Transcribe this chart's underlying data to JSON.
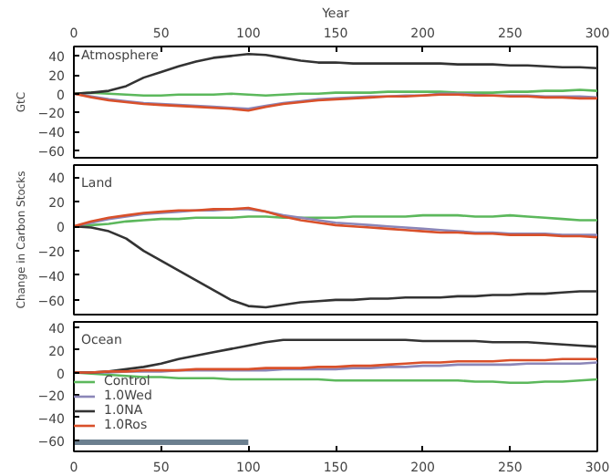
{
  "chart_data": [
    {
      "type": "line",
      "title": "Atmosphere",
      "ylabel": "GtC",
      "x2label": "Year",
      "xlim": [
        0,
        300
      ],
      "x2lim": [
        0,
        300
      ],
      "x2ticks": [
        0,
        50,
        100,
        150,
        200,
        250,
        300
      ],
      "ylim": [
        -68,
        50
      ],
      "yticks": [
        -60,
        -40,
        -20,
        0,
        20,
        40
      ],
      "tick_labels": "y",
      "grid": false,
      "legend": false,
      "x": [
        0,
        10,
        20,
        30,
        40,
        50,
        60,
        70,
        80,
        90,
        100,
        110,
        120,
        130,
        140,
        150,
        160,
        170,
        180,
        190,
        200,
        210,
        220,
        230,
        240,
        250,
        260,
        270,
        280,
        290,
        300
      ],
      "series": [
        {
          "color": "#5cb85c",
          "values": [
            0,
            1,
            0,
            -1,
            -2,
            -2,
            -1,
            -1,
            -1,
            0,
            -1,
            -2,
            -1,
            0,
            0,
            1,
            1,
            1,
            2,
            2,
            2,
            2,
            1,
            1,
            1,
            2,
            2,
            3,
            3,
            4,
            3
          ]
        },
        {
          "color": "#8b86b8",
          "values": [
            0,
            -3,
            -6,
            -8,
            -10,
            -11,
            -12,
            -13,
            -14,
            -15,
            -16,
            -13,
            -10,
            -8,
            -6,
            -5,
            -4,
            -3,
            -3,
            -2,
            -2,
            0,
            0,
            -1,
            -2,
            -2,
            -2,
            -3,
            -3,
            -3,
            -4
          ]
        },
        {
          "color": "#333333",
          "values": [
            0,
            1,
            3,
            8,
            17,
            23,
            29,
            34,
            38,
            40,
            42,
            41,
            38,
            35,
            33,
            33,
            32,
            32,
            32,
            32,
            32,
            32,
            31,
            31,
            31,
            30,
            30,
            29,
            28,
            28,
            27
          ]
        },
        {
          "color": "#d9502a",
          "values": [
            0,
            -4,
            -7,
            -9,
            -11,
            -12,
            -13,
            -14,
            -15,
            -16,
            -18,
            -14,
            -11,
            -9,
            -7,
            -6,
            -5,
            -4,
            -3,
            -3,
            -2,
            -1,
            -1,
            -2,
            -2,
            -3,
            -3,
            -4,
            -4,
            -5,
            -5
          ]
        }
      ]
    },
    {
      "type": "line",
      "title": "Land",
      "ylabel": "Change in Carbon Stocks",
      "xlim": [
        0,
        300
      ],
      "ylim": [
        -72,
        50
      ],
      "yticks": [
        -60,
        -40,
        -20,
        0,
        20,
        40
      ],
      "tick_labels": "y",
      "grid": false,
      "legend": false,
      "x": [
        0,
        10,
        20,
        30,
        40,
        50,
        60,
        70,
        80,
        90,
        100,
        110,
        120,
        130,
        140,
        150,
        160,
        170,
        180,
        190,
        200,
        210,
        220,
        230,
        240,
        250,
        260,
        270,
        280,
        290,
        300
      ],
      "series": [
        {
          "color": "#5cb85c",
          "values": [
            0,
            1,
            2,
            4,
            5,
            6,
            6,
            7,
            7,
            7,
            8,
            8,
            7,
            7,
            7,
            7,
            8,
            8,
            8,
            8,
            9,
            9,
            9,
            8,
            8,
            9,
            8,
            7,
            6,
            5,
            5
          ]
        },
        {
          "color": "#8b86b8",
          "values": [
            0,
            3,
            6,
            8,
            10,
            11,
            12,
            13,
            13,
            14,
            14,
            12,
            9,
            7,
            5,
            3,
            2,
            1,
            0,
            -1,
            -2,
            -3,
            -4,
            -5,
            -5,
            -6,
            -6,
            -6,
            -7,
            -7,
            -7
          ]
        },
        {
          "color": "#333333",
          "values": [
            0,
            -1,
            -4,
            -10,
            -20,
            -28,
            -36,
            -44,
            -52,
            -60,
            -65,
            -66,
            -64,
            -62,
            -61,
            -60,
            -60,
            -59,
            -59,
            -58,
            -58,
            -58,
            -57,
            -57,
            -56,
            -56,
            -55,
            -55,
            -54,
            -53,
            -53
          ]
        },
        {
          "color": "#d9502a",
          "values": [
            0,
            4,
            7,
            9,
            11,
            12,
            13,
            13,
            14,
            14,
            15,
            12,
            8,
            5,
            3,
            1,
            0,
            -1,
            -2,
            -3,
            -4,
            -5,
            -5,
            -6,
            -6,
            -7,
            -7,
            -7,
            -8,
            -8,
            -9
          ]
        }
      ]
    },
    {
      "type": "line",
      "title": "Ocean",
      "xlim": [
        0,
        300
      ],
      "xticks": [
        0,
        50,
        100,
        150,
        200,
        250,
        300
      ],
      "ylim": [
        -70,
        45
      ],
      "yticks": [
        -60,
        -40,
        -20,
        0,
        20,
        40
      ],
      "grid": false,
      "legend": "left",
      "x": [
        0,
        10,
        20,
        30,
        40,
        50,
        60,
        70,
        80,
        90,
        100,
        110,
        120,
        130,
        140,
        150,
        160,
        170,
        180,
        190,
        200,
        210,
        220,
        230,
        240,
        250,
        260,
        270,
        280,
        290,
        300
      ],
      "series": [
        {
          "name": "Control",
          "color": "#5cb85c",
          "values": [
            0,
            -1,
            -2,
            -3,
            -4,
            -4,
            -5,
            -5,
            -5,
            -6,
            -6,
            -6,
            -6,
            -6,
            -6,
            -7,
            -7,
            -7,
            -7,
            -7,
            -7,
            -7,
            -7,
            -8,
            -8,
            -9,
            -9,
            -8,
            -8,
            -7,
            -6
          ]
        },
        {
          "name": "1.0Wed",
          "color": "#8b86b8",
          "values": [
            0,
            0,
            0,
            1,
            1,
            1,
            2,
            2,
            2,
            2,
            2,
            2,
            3,
            3,
            3,
            3,
            4,
            4,
            5,
            5,
            6,
            6,
            7,
            7,
            7,
            7,
            8,
            8,
            8,
            8,
            9
          ]
        },
        {
          "name": "1.0NA",
          "color": "#333333",
          "values": [
            0,
            0,
            1,
            3,
            5,
            8,
            12,
            15,
            18,
            21,
            24,
            27,
            29,
            29,
            29,
            29,
            29,
            29,
            29,
            29,
            28,
            28,
            28,
            28,
            27,
            27,
            27,
            26,
            25,
            24,
            23
          ]
        },
        {
          "name": "1.0Ros",
          "color": "#d9502a",
          "values": [
            0,
            0,
            1,
            1,
            2,
            2,
            2,
            3,
            3,
            3,
            3,
            4,
            4,
            4,
            5,
            5,
            6,
            6,
            7,
            8,
            9,
            9,
            10,
            10,
            10,
            11,
            11,
            11,
            12,
            12,
            12
          ]
        },
        {
          "type": "line",
          "color": "#6b7f8f",
          "x": [
            0,
            100
          ],
          "values": [
            -62,
            -62
          ]
        }
      ]
    }
  ]
}
